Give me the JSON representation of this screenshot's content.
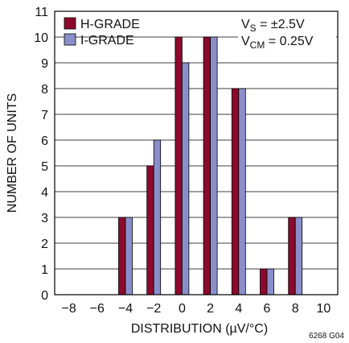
{
  "chart_data": {
    "type": "bar",
    "x_categories": [
      "−8",
      "−6",
      "−4",
      "−2",
      "0",
      "2",
      "4",
      "6",
      "8",
      "10"
    ],
    "bar_groups": [
      "−4",
      "−2",
      "0",
      "2",
      "4",
      "6",
      "8"
    ],
    "series": [
      {
        "name": "H-GRADE",
        "color": "#8b0a2d",
        "values": [
          3,
          5,
          10,
          10,
          8,
          1,
          3
        ]
      },
      {
        "name": "I-GRADE",
        "color": "#8a8fcc",
        "values": [
          3,
          6,
          9,
          10,
          8,
          1,
          3
        ]
      }
    ],
    "xlabel": "DISTRIBUTION (µV/°C)",
    "ylabel": "NUMBER OF UNITS",
    "ylim": [
      0,
      11
    ],
    "yticks": [
      "0",
      "1",
      "2",
      "3",
      "4",
      "5",
      "6",
      "7",
      "8",
      "9",
      "10",
      "11"
    ],
    "grid": "horizontal",
    "legend_position": "top-left",
    "conditions": {
      "line1": {
        "main": "V",
        "sub": "S",
        "rest": " = ±2.5V"
      },
      "line2": {
        "main": "V",
        "sub": "CM",
        "rest": " = 0.25V"
      }
    },
    "figure_note": "6268 G04"
  }
}
